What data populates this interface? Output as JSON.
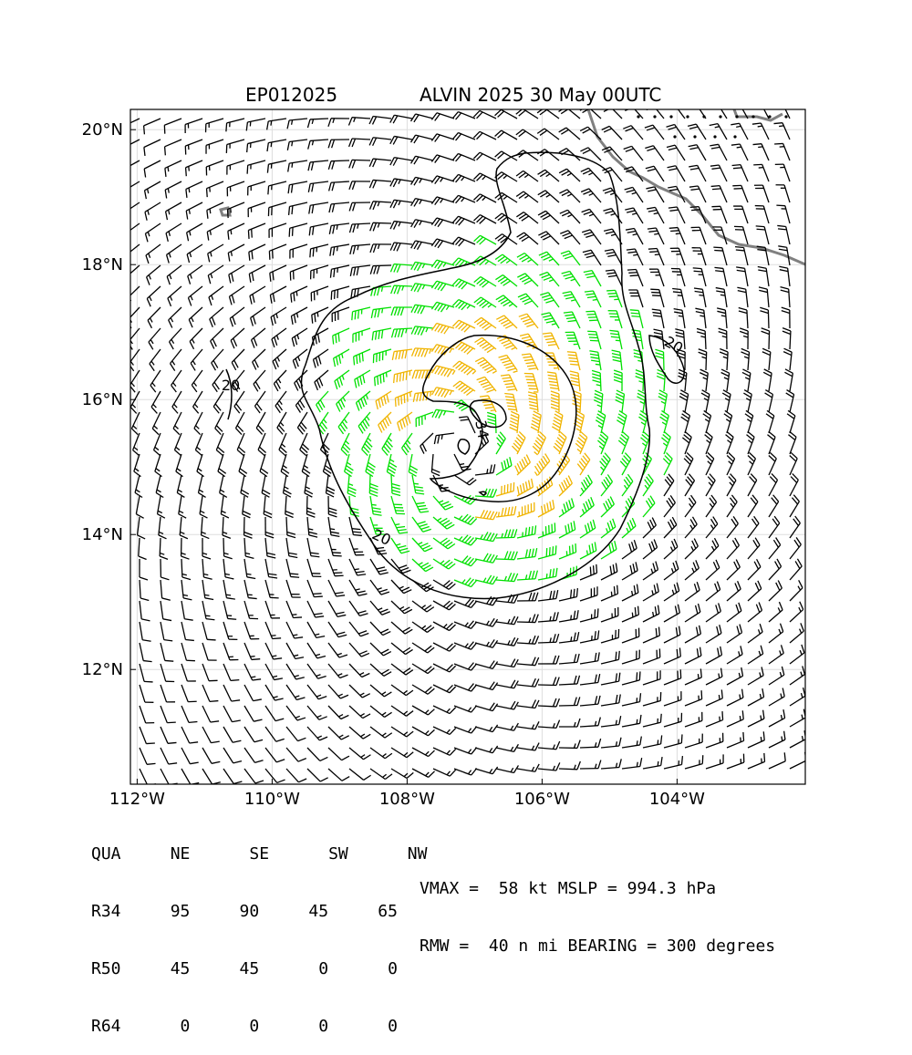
{
  "title": {
    "storm_id": "EP012025",
    "storm_info": "ALVIN 2025 30 May 00UTC"
  },
  "map": {
    "lat_labels": [
      "20°N",
      "18°N",
      "16°N",
      "14°N",
      "12°N"
    ],
    "lon_labels": [
      "112°W",
      "110°W",
      "108°W",
      "106°W",
      "104°W"
    ],
    "lat_range": [
      10.3,
      20.3
    ],
    "lon_range": [
      112.1,
      102.1
    ],
    "center": {
      "lat": 15.3,
      "lon": 107.2
    },
    "contour_labels": [
      "20",
      "34",
      "20",
      "20"
    ],
    "colors": {
      "barb_weak": "#000000",
      "barb_34kt": "#00e000",
      "barb_50kt": "#f0b400",
      "coast": "#808080",
      "contour": "#000000"
    }
  },
  "quadrant_table": {
    "header": [
      "QUA",
      "NE",
      "SE",
      "SW",
      "NW"
    ],
    "rows": [
      {
        "label": "R34",
        "values": [
          "95",
          "90",
          "45",
          "65"
        ]
      },
      {
        "label": "R50",
        "values": [
          "45",
          "45",
          "0",
          "0"
        ]
      },
      {
        "label": "R64",
        "values": [
          "0",
          "0",
          "0",
          "0"
        ]
      }
    ]
  },
  "stats": {
    "line1": "VMAX =  58 kt MSLP = 994.3 hPa",
    "line2": "RMW =  40 n mi BEARING = 300 degrees"
  }
}
